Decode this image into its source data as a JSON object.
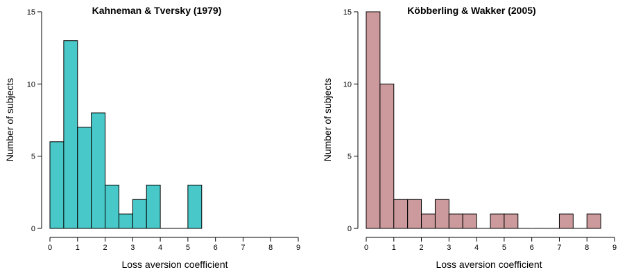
{
  "chart_data": [
    {
      "type": "bar",
      "title": "Kahneman & Tversky (1979)",
      "xlabel": "Loss aversion coefficient",
      "ylabel": "Number of subjects",
      "xlim": [
        0,
        9
      ],
      "ylim": [
        0,
        15
      ],
      "x_ticks": [
        "0",
        "1",
        "2",
        "3",
        "4",
        "5",
        "6",
        "7",
        "8",
        "9"
      ],
      "y_ticks": [
        "0",
        "5",
        "10",
        "15"
      ],
      "bin_width": 0.5,
      "bins": [
        {
          "start": 0,
          "end": 0.5,
          "count": 6
        },
        {
          "start": 0.5,
          "end": 1,
          "count": 13
        },
        {
          "start": 1,
          "end": 1.5,
          "count": 7
        },
        {
          "start": 1.5,
          "end": 2,
          "count": 8
        },
        {
          "start": 2,
          "end": 2.5,
          "count": 3
        },
        {
          "start": 2.5,
          "end": 3,
          "count": 1
        },
        {
          "start": 3,
          "end": 3.5,
          "count": 2
        },
        {
          "start": 3.5,
          "end": 4,
          "count": 3
        },
        {
          "start": 4,
          "end": 4.5,
          "count": 0
        },
        {
          "start": 4.5,
          "end": 5,
          "count": 0
        },
        {
          "start": 5,
          "end": 5.5,
          "count": 3
        }
      ],
      "fill_color": "#48c8c8",
      "grid": false
    },
    {
      "type": "bar",
      "title": "Köbberling & Wakker (2005)",
      "xlabel": "Loss aversion coefficient",
      "ylabel": "Number of subjects",
      "xlim": [
        0,
        9
      ],
      "ylim": [
        0,
        15
      ],
      "x_ticks": [
        "0",
        "1",
        "2",
        "3",
        "4",
        "5",
        "6",
        "7",
        "8",
        "9"
      ],
      "y_ticks": [
        "0",
        "5",
        "10",
        "15"
      ],
      "bin_width": 0.5,
      "bins": [
        {
          "start": 0,
          "end": 0.5,
          "count": 15
        },
        {
          "start": 0.5,
          "end": 1,
          "count": 10
        },
        {
          "start": 1,
          "end": 1.5,
          "count": 2
        },
        {
          "start": 1.5,
          "end": 2,
          "count": 2
        },
        {
          "start": 2,
          "end": 2.5,
          "count": 1
        },
        {
          "start": 2.5,
          "end": 3,
          "count": 2
        },
        {
          "start": 3,
          "end": 3.5,
          "count": 1
        },
        {
          "start": 3.5,
          "end": 4,
          "count": 1
        },
        {
          "start": 4,
          "end": 4.5,
          "count": 0
        },
        {
          "start": 4.5,
          "end": 5,
          "count": 1
        },
        {
          "start": 5,
          "end": 5.5,
          "count": 1
        },
        {
          "start": 5.5,
          "end": 6,
          "count": 0
        },
        {
          "start": 6,
          "end": 6.5,
          "count": 0
        },
        {
          "start": 6.5,
          "end": 7,
          "count": 0
        },
        {
          "start": 7,
          "end": 7.5,
          "count": 1
        },
        {
          "start": 7.5,
          "end": 8,
          "count": 0
        },
        {
          "start": 8,
          "end": 8.5,
          "count": 1
        }
      ],
      "fill_color": "#cc9a9c",
      "grid": false
    }
  ]
}
